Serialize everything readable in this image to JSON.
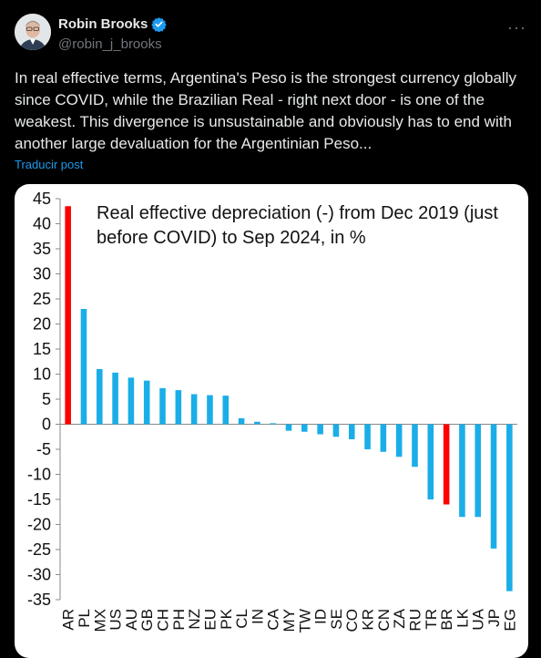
{
  "author": {
    "name": "Robin Brooks",
    "handle": "@robin_j_brooks",
    "avatar_icon": "person-avatar",
    "verified_color": "#1d9bf0"
  },
  "more_label": "···",
  "tweet": {
    "text": "In real effective terms, Argentina's Peso is the strongest currency globally since COVID, while the Brazilian Real - right next door - is one of the weakest. This divergence is unsustainable and obviously has to end with another large devaluation for the Argentinian Peso...",
    "translate_label": "Traducir post"
  },
  "colors": {
    "accent": "#1d9bf0",
    "bar_default": "#1aaee8",
    "bar_highlight": "#ff0000"
  },
  "chart_data": {
    "type": "bar",
    "title": "Real effective depreciation (-) from Dec 2019 (just before COVID) to Sep 2024, in %",
    "title_lines": [
      "Real effective depreciation (-) from Dec 2019 (just",
      "before COVID) to Sep 2024, in %"
    ],
    "xlabel": "",
    "ylabel": "",
    "ylim": [
      -35,
      45
    ],
    "yticks": [
      45,
      40,
      35,
      30,
      25,
      20,
      15,
      10,
      5,
      0,
      -5,
      -10,
      -15,
      -20,
      -25,
      -30,
      -35
    ],
    "grid": false,
    "categories": [
      "AR",
      "PL",
      "MX",
      "US",
      "AU",
      "GB",
      "CH",
      "PH",
      "NZ",
      "EU",
      "PK",
      "CL",
      "IN",
      "CA",
      "MY",
      "TW",
      "ID",
      "SE",
      "CO",
      "KR",
      "CN",
      "ZA",
      "RU",
      "TR",
      "BR",
      "LK",
      "UA",
      "JP",
      "EG"
    ],
    "values": [
      43.5,
      23.0,
      11.0,
      10.3,
      9.3,
      8.7,
      7.2,
      6.8,
      6.0,
      5.8,
      5.7,
      1.2,
      0.5,
      0.2,
      -1.3,
      -1.5,
      -2.0,
      -2.5,
      -3.0,
      -5.0,
      -5.5,
      -6.5,
      -8.5,
      -15.0,
      -16.0,
      -18.5,
      -18.5,
      -24.8,
      -33.3
    ],
    "highlight": [
      "AR",
      "BR"
    ]
  }
}
